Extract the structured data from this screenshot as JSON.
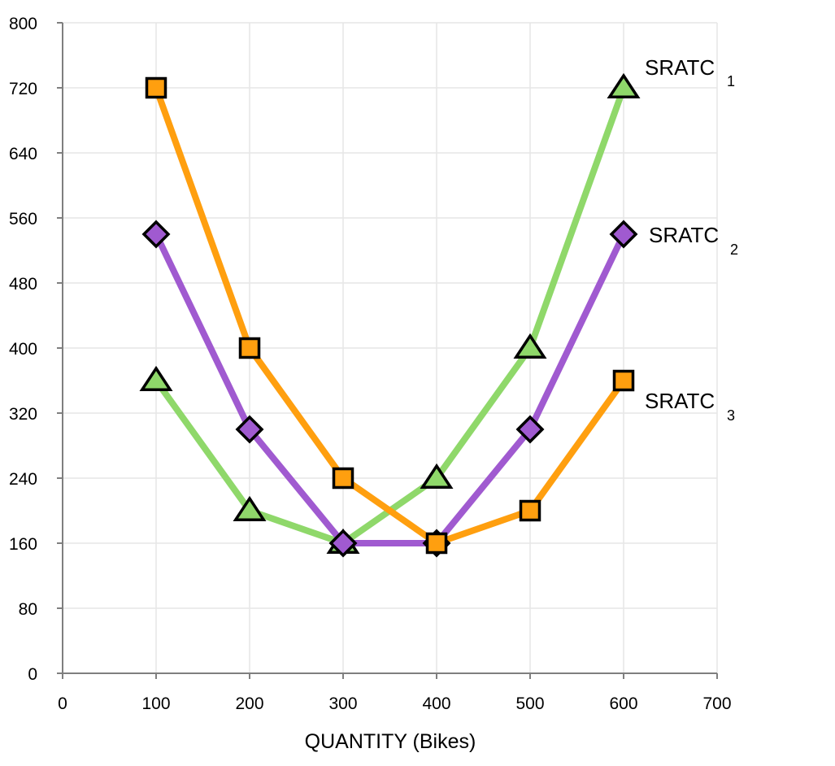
{
  "chart_data": {
    "type": "line",
    "title": "",
    "xlabel": "QUANTITY (Bikes)",
    "ylabel": "",
    "xlim": [
      0,
      700
    ],
    "ylim": [
      0,
      800
    ],
    "x_ticks": [
      0,
      100,
      200,
      300,
      400,
      500,
      600,
      700
    ],
    "y_ticks": [
      0,
      80,
      160,
      240,
      320,
      400,
      480,
      560,
      640,
      720,
      800
    ],
    "grid": true,
    "legend": "none",
    "series": [
      {
        "name": "SRATC",
        "subscript": "1",
        "marker": "triangle",
        "line_color": "#8fd86a",
        "marker_color": "#8fd86a",
        "x": [
          100,
          200,
          300,
          400,
          500,
          600
        ],
        "y": [
          360,
          200,
          160,
          240,
          400,
          720
        ]
      },
      {
        "name": "SRATC",
        "subscript": "2",
        "marker": "diamond",
        "line_color": "#a05ad0",
        "marker_color": "#a05ad0",
        "x": [
          100,
          200,
          300,
          400,
          500,
          600
        ],
        "y": [
          540,
          300,
          160,
          160,
          300,
          540
        ]
      },
      {
        "name": "SRATC",
        "subscript": "3",
        "marker": "square",
        "line_color": "#ff9f0f",
        "marker_color": "#ff9f0f",
        "x": [
          100,
          200,
          300,
          400,
          500,
          600
        ],
        "y": [
          720,
          400,
          240,
          160,
          200,
          360
        ]
      }
    ]
  }
}
